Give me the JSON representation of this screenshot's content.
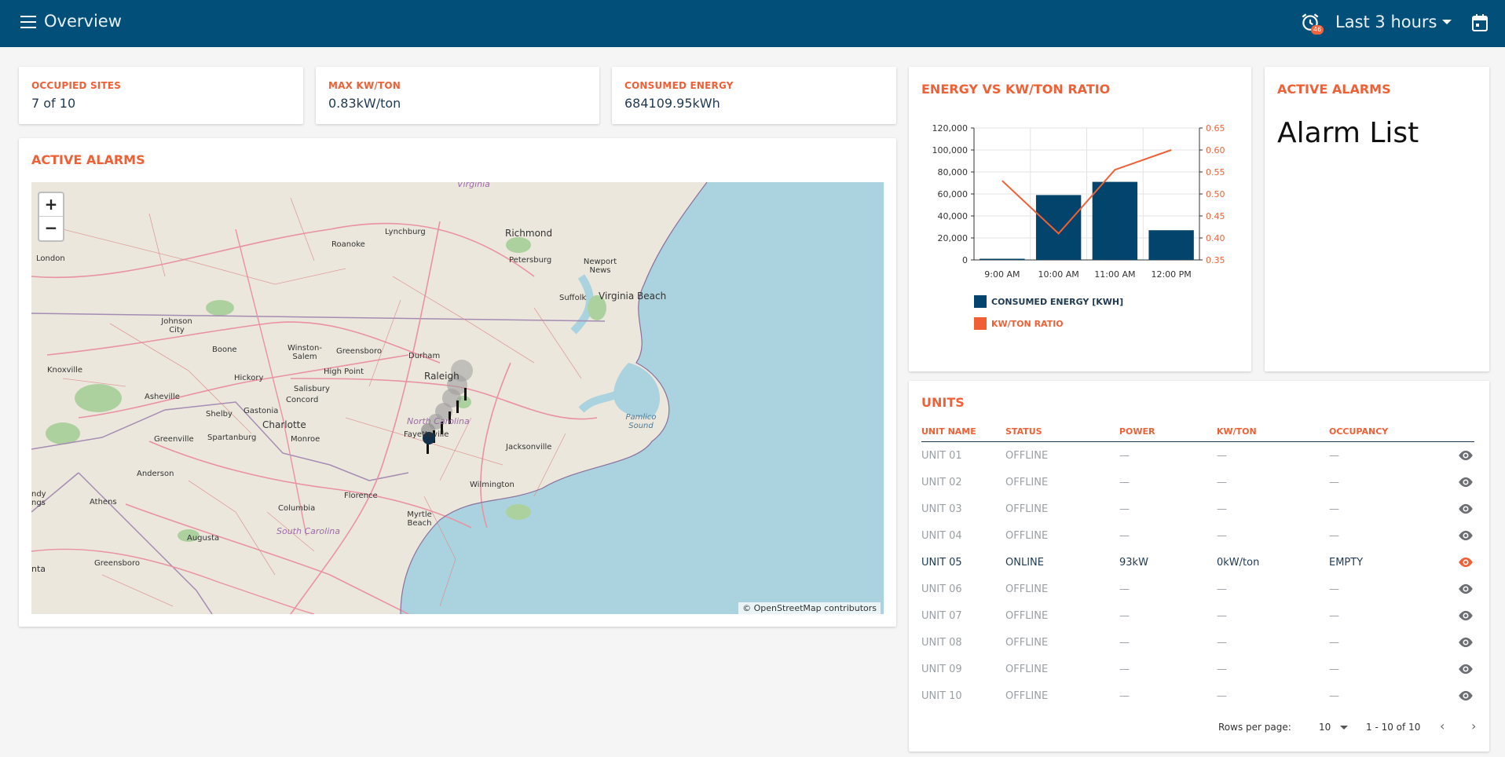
{
  "header": {
    "title": "Overview",
    "alarm_count": "46",
    "time_range": "Last 3 hours"
  },
  "stats": [
    {
      "label": "OCCUPIED SITES",
      "value": "7 of 10"
    },
    {
      "label": "MAX KW/TON",
      "value": "0.83kW/ton"
    },
    {
      "label": "CONSUMED ENERGY",
      "value": "684109.95kWh"
    }
  ],
  "map_card": {
    "title": "ACTIVE ALARMS",
    "zoom_in": "+",
    "zoom_out": "−",
    "attribution": "© OpenStreetMap contributors",
    "labels": {
      "virginia": "Virginia",
      "richmond": "Richmond",
      "lynchburg": "Lynchburg",
      "roanoke": "Roanoke",
      "petersburg": "Petersburg",
      "newport_news": "Newport News",
      "london": "London",
      "virginia_beach": "Virginia Beach",
      "suffolk": "Suffolk",
      "johnson_city": "Johnson City",
      "boone": "Boone",
      "winston_salem": "Winston-Salem",
      "greensboro": "Greensboro",
      "durham": "Durham",
      "raleigh": "Raleigh",
      "knoxville": "Knoxville",
      "hickory": "Hickory",
      "high_point": "High Point",
      "salisbury": "Salisbury",
      "asheville": "Asheville",
      "concord": "Concord",
      "shelby": "Shelby",
      "gastonia": "Gastonia",
      "charlotte": "Charlotte",
      "north_carolina": "North Carolina",
      "fayetteville": "Fayetteville",
      "pamlico_sound": "Pamlico Sound",
      "greenville": "Greenville",
      "spartanburg": "Spartanburg",
      "monroe": "Monroe",
      "jacksonville": "Jacksonville",
      "anderson": "Anderson",
      "wilmington": "Wilmington",
      "athens": "Athens",
      "florence": "Florence",
      "columbia": "Columbia",
      "myrtle_beach": "Myrtle Beach",
      "south_carolina": "South Carolina",
      "augusta": "Augusta",
      "greensboro_ga": "Greensboro",
      "ndy_ngs": "ndy ngs",
      "nta": "nta"
    }
  },
  "chart_card": {
    "title": "ENERGY VS KW/TON RATIO",
    "chart_data": {
      "type": "bar",
      "categories": [
        "9:00 AM",
        "10:00 AM",
        "11:00 AM",
        "12:00 PM"
      ],
      "series": [
        {
          "name": "CONSUMED ENERGY [KWH]",
          "type": "bar",
          "axis": "left",
          "values": [
            0,
            59000,
            71000,
            27000
          ],
          "color": "#02446b"
        },
        {
          "name": "KW/TON RATIO",
          "type": "line",
          "axis": "right",
          "values": [
            0.53,
            0.41,
            0.555,
            0.6
          ],
          "color": "#ef6036"
        }
      ],
      "y_left": {
        "min": 0,
        "max": 120000,
        "ticks": [
          "0",
          "20,000",
          "40,000",
          "60,000",
          "80,000",
          "100,000",
          "120,000"
        ]
      },
      "y_right": {
        "min": 0.35,
        "max": 0.65,
        "ticks": [
          "0.35",
          "0.40",
          "0.45",
          "0.50",
          "0.55",
          "0.60",
          "0.65"
        ]
      },
      "legend_position": "bottom-left",
      "grid": true
    }
  },
  "alarm_card": {
    "title": "ACTIVE ALARMS",
    "body": "Alarm List"
  },
  "units_card": {
    "title": "UNITS",
    "columns": [
      "UNIT NAME",
      "STATUS",
      "POWER",
      "KW/TON",
      "OCCUPANCY"
    ],
    "rows": [
      {
        "name": "UNIT 01",
        "status": "OFFLINE",
        "power": "—",
        "kwton": "—",
        "occupancy": "—",
        "online": false
      },
      {
        "name": "UNIT 02",
        "status": "OFFLINE",
        "power": "—",
        "kwton": "—",
        "occupancy": "—",
        "online": false
      },
      {
        "name": "UNIT 03",
        "status": "OFFLINE",
        "power": "—",
        "kwton": "—",
        "occupancy": "—",
        "online": false
      },
      {
        "name": "UNIT 04",
        "status": "OFFLINE",
        "power": "—",
        "kwton": "—",
        "occupancy": "—",
        "online": false
      },
      {
        "name": "UNIT 05",
        "status": "ONLINE",
        "power": "93kW",
        "kwton": "0kW/ton",
        "occupancy": "EMPTY",
        "online": true
      },
      {
        "name": "UNIT 06",
        "status": "OFFLINE",
        "power": "—",
        "kwton": "—",
        "occupancy": "—",
        "online": false
      },
      {
        "name": "UNIT 07",
        "status": "OFFLINE",
        "power": "—",
        "kwton": "—",
        "occupancy": "—",
        "online": false
      },
      {
        "name": "UNIT 08",
        "status": "OFFLINE",
        "power": "—",
        "kwton": "—",
        "occupancy": "—",
        "online": false
      },
      {
        "name": "UNIT 09",
        "status": "OFFLINE",
        "power": "—",
        "kwton": "—",
        "occupancy": "—",
        "online": false
      },
      {
        "name": "UNIT 10",
        "status": "OFFLINE",
        "power": "—",
        "kwton": "—",
        "occupancy": "—",
        "online": false
      }
    ],
    "pagination": {
      "rows_per_page_label": "Rows per page:",
      "rows_per_page": "10",
      "range": "1 - 10 of 10"
    }
  },
  "colors": {
    "primary": "#02507a",
    "accent": "#ef6036",
    "online_eye": "#ef6036",
    "offline_eye": "#6b6f73"
  }
}
